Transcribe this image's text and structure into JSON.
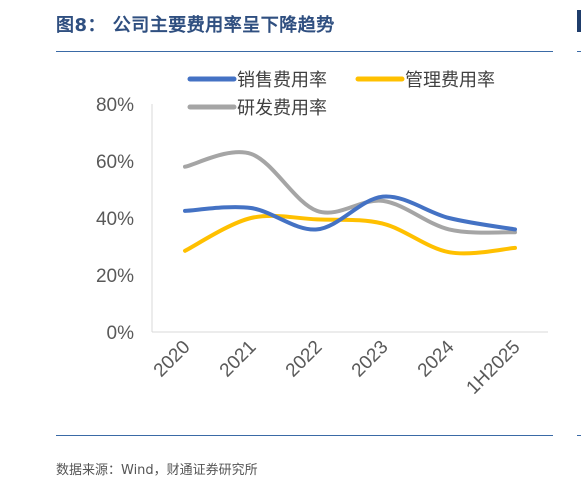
{
  "figure": {
    "title": "图8： 公司主要费用率呈下降趋势",
    "source": "数据来源：Wind，财通证券研究所"
  },
  "chart_data": {
    "type": "line",
    "categories": [
      "2020",
      "2021",
      "2022",
      "2023",
      "2024",
      "1H2025"
    ],
    "series": [
      {
        "name": "销售费用率",
        "color": "#4472c4",
        "values": [
          42.5,
          43.5,
          36,
          47.5,
          40,
          36
        ]
      },
      {
        "name": "管理费用率",
        "color": "#ffc000",
        "values": [
          28.5,
          40,
          39.5,
          38,
          28,
          29.5
        ]
      },
      {
        "name": "研发费用率",
        "color": "#a5a5a5",
        "values": [
          58,
          62.5,
          42.5,
          46,
          36,
          35
        ]
      }
    ],
    "yticks": [
      "0%",
      "20%",
      "40%",
      "60%",
      "80%"
    ],
    "ylim": [
      0,
      80
    ],
    "smooth": true,
    "grid": false,
    "legend": "top"
  }
}
